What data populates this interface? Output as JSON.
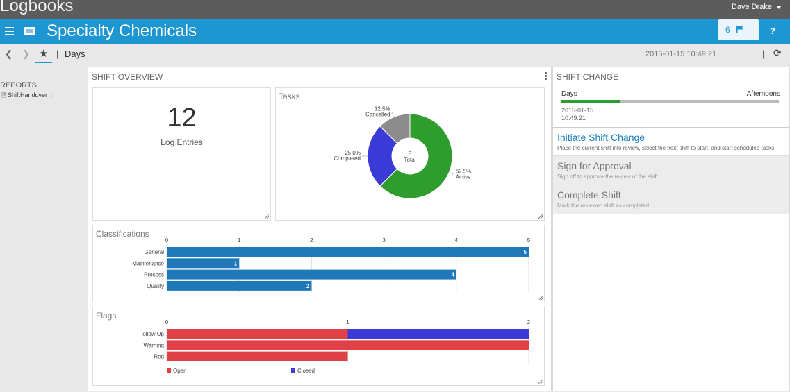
{
  "app": {
    "title": "Logbooks",
    "user": "Dave Drake"
  },
  "header": {
    "title": "Specialty Chemicals",
    "flag_count": "6",
    "help": "?"
  },
  "nav": {
    "shift": "Days",
    "separator": "|",
    "timestamp": "2015-01-15 10:49:21"
  },
  "sidebar": {
    "heading": "REPORTS",
    "items": [
      {
        "label": "ShiftHandover"
      }
    ]
  },
  "overview": {
    "title": "SHIFT OVERVIEW",
    "log_entries": {
      "value": "12",
      "label": "Log Entries"
    },
    "tasks_title": "Tasks",
    "classifications_title": "Classifications",
    "flags_title": "Flags"
  },
  "shift_change": {
    "title": "SHIFT CHANGE",
    "from": "Days",
    "to": "Afternoons",
    "progress": 0.27,
    "date": "2015-01-15",
    "time": "10:49:21",
    "actions": [
      {
        "title": "Initiate Shift Change",
        "desc": "Place the current shift into review, select the next shift to start, and start scheduled tasks."
      },
      {
        "title": "Sign for Approval",
        "desc": "Sign off to approve the review of the shift."
      },
      {
        "title": "Complete Shift",
        "desc": "Mark the reviewed shift as completed."
      }
    ]
  },
  "colors": {
    "accent": "#1e96d2",
    "green": "#2e9d2e",
    "blue": "#3a3ad6",
    "gray": "#8c8c8c",
    "bar": "#1f78b8",
    "open": "#e04146",
    "closed": "#3a3ad6"
  },
  "chart_data": [
    {
      "type": "pie",
      "title": "Tasks",
      "center_value": "8",
      "center_label": "Total",
      "slices": [
        {
          "name": "Active",
          "value": 62.5,
          "label": "62.5%",
          "color": "#2e9d2e"
        },
        {
          "name": "Completed",
          "value": 25.0,
          "label": "25.0%",
          "color": "#3a3ad6"
        },
        {
          "name": "Cancelled",
          "value": 12.5,
          "label": "12.5%",
          "color": "#8c8c8c"
        }
      ]
    },
    {
      "type": "bar",
      "title": "Classifications",
      "categories": [
        "General",
        "Maintenance",
        "Process",
        "Quality"
      ],
      "values": [
        5,
        1,
        4,
        2
      ],
      "xlim": [
        0,
        5
      ],
      "ticks": [
        0,
        1,
        2,
        3,
        4,
        5
      ],
      "orientation": "horizontal",
      "grid": true
    },
    {
      "type": "bar",
      "title": "Flags",
      "categories": [
        "Follow Up",
        "Warning",
        "Red"
      ],
      "series": [
        {
          "name": "Open",
          "values": [
            1,
            2,
            1
          ]
        },
        {
          "name": "Closed",
          "values": [
            1,
            0,
            0
          ]
        }
      ],
      "stacked": true,
      "orientation": "horizontal",
      "xlim": [
        0,
        2
      ],
      "ticks": [
        0,
        1,
        2
      ],
      "legend": "bottom-left"
    }
  ]
}
